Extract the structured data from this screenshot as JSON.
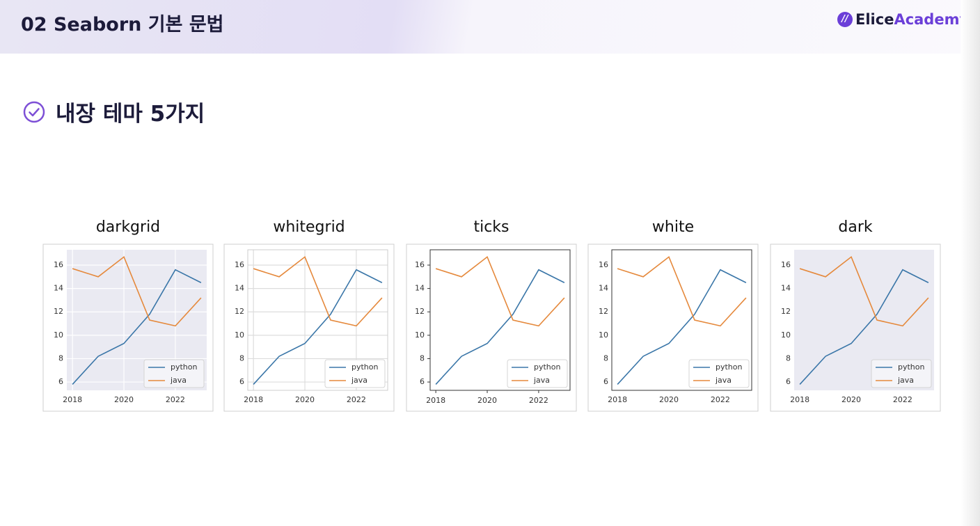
{
  "header": {
    "title": "02 Seaborn 기본 문법",
    "logo": [
      "Elice",
      "Academy"
    ]
  },
  "section_title": "내장 테마 5가지",
  "chart_data": [
    {
      "type": "line",
      "title": "darkgrid",
      "x": [
        2018,
        2019,
        2020,
        2021,
        2022,
        2023
      ],
      "series": [
        {
          "name": "python",
          "color": "#3a76a8",
          "values": [
            5.8,
            8.2,
            9.3,
            11.8,
            15.6,
            14.5
          ]
        },
        {
          "name": "java",
          "color": "#e5893c",
          "values": [
            15.7,
            15.0,
            16.7,
            11.3,
            10.8,
            13.2
          ]
        }
      ],
      "xlim": [
        2017.78,
        2023.22
      ],
      "ylim": [
        5.29,
        17.31
      ],
      "xticks": [
        2018,
        2020,
        2022
      ],
      "yticks": [
        6,
        8,
        10,
        12,
        14,
        16
      ],
      "background": "#eaeaf2",
      "grid": true,
      "grid_color": "#ffffff",
      "spines": false,
      "spine_color": "#ffffff",
      "tick_marks": false,
      "legend": "lower right"
    },
    {
      "type": "line",
      "title": "whitegrid",
      "x": [
        2018,
        2019,
        2020,
        2021,
        2022,
        2023
      ],
      "series": [
        {
          "name": "python",
          "color": "#3a76a8",
          "values": [
            5.8,
            8.2,
            9.3,
            11.8,
            15.6,
            14.5
          ]
        },
        {
          "name": "java",
          "color": "#e5893c",
          "values": [
            15.7,
            15.0,
            16.7,
            11.3,
            10.8,
            13.2
          ]
        }
      ],
      "xlim": [
        2017.78,
        2023.22
      ],
      "ylim": [
        5.29,
        17.31
      ],
      "xticks": [
        2018,
        2020,
        2022
      ],
      "yticks": [
        6,
        8,
        10,
        12,
        14,
        16
      ],
      "background": "#ffffff",
      "grid": true,
      "grid_color": "#dddddd",
      "spines": true,
      "spine_color": "#cccccc",
      "tick_marks": false,
      "legend": "lower right"
    },
    {
      "type": "line",
      "title": "ticks",
      "x": [
        2018,
        2019,
        2020,
        2021,
        2022,
        2023
      ],
      "series": [
        {
          "name": "python",
          "color": "#3a76a8",
          "values": [
            5.8,
            8.2,
            9.3,
            11.8,
            15.6,
            14.5
          ]
        },
        {
          "name": "java",
          "color": "#e5893c",
          "values": [
            15.7,
            15.0,
            16.7,
            11.3,
            10.8,
            13.2
          ]
        }
      ],
      "xlim": [
        2017.78,
        2023.22
      ],
      "ylim": [
        5.29,
        17.31
      ],
      "xticks": [
        2018,
        2020,
        2022
      ],
      "yticks": [
        6,
        8,
        10,
        12,
        14,
        16
      ],
      "background": "#ffffff",
      "grid": false,
      "grid_color": "#dddddd",
      "spines": true,
      "spine_color": "#333333",
      "tick_marks": true,
      "legend": "lower right"
    },
    {
      "type": "line",
      "title": "white",
      "x": [
        2018,
        2019,
        2020,
        2021,
        2022,
        2023
      ],
      "series": [
        {
          "name": "python",
          "color": "#3a76a8",
          "values": [
            5.8,
            8.2,
            9.3,
            11.8,
            15.6,
            14.5
          ]
        },
        {
          "name": "java",
          "color": "#e5893c",
          "values": [
            15.7,
            15.0,
            16.7,
            11.3,
            10.8,
            13.2
          ]
        }
      ],
      "xlim": [
        2017.78,
        2023.22
      ],
      "ylim": [
        5.29,
        17.31
      ],
      "xticks": [
        2018,
        2020,
        2022
      ],
      "yticks": [
        6,
        8,
        10,
        12,
        14,
        16
      ],
      "background": "#ffffff",
      "grid": false,
      "grid_color": "#dddddd",
      "spines": true,
      "spine_color": "#333333",
      "tick_marks": false,
      "legend": "lower right"
    },
    {
      "type": "line",
      "title": "dark",
      "x": [
        2018,
        2019,
        2020,
        2021,
        2022,
        2023
      ],
      "series": [
        {
          "name": "python",
          "color": "#3a76a8",
          "values": [
            5.8,
            8.2,
            9.3,
            11.8,
            15.6,
            14.5
          ]
        },
        {
          "name": "java",
          "color": "#e5893c",
          "values": [
            15.7,
            15.0,
            16.7,
            11.3,
            10.8,
            13.2
          ]
        }
      ],
      "xlim": [
        2017.78,
        2023.22
      ],
      "ylim": [
        5.29,
        17.31
      ],
      "xticks": [
        2018,
        2020,
        2022
      ],
      "yticks": [
        6,
        8,
        10,
        12,
        14,
        16
      ],
      "background": "#eaeaf2",
      "grid": false,
      "grid_color": "#ffffff",
      "spines": false,
      "spine_color": "#ffffff",
      "tick_marks": false,
      "legend": "lower right"
    }
  ]
}
